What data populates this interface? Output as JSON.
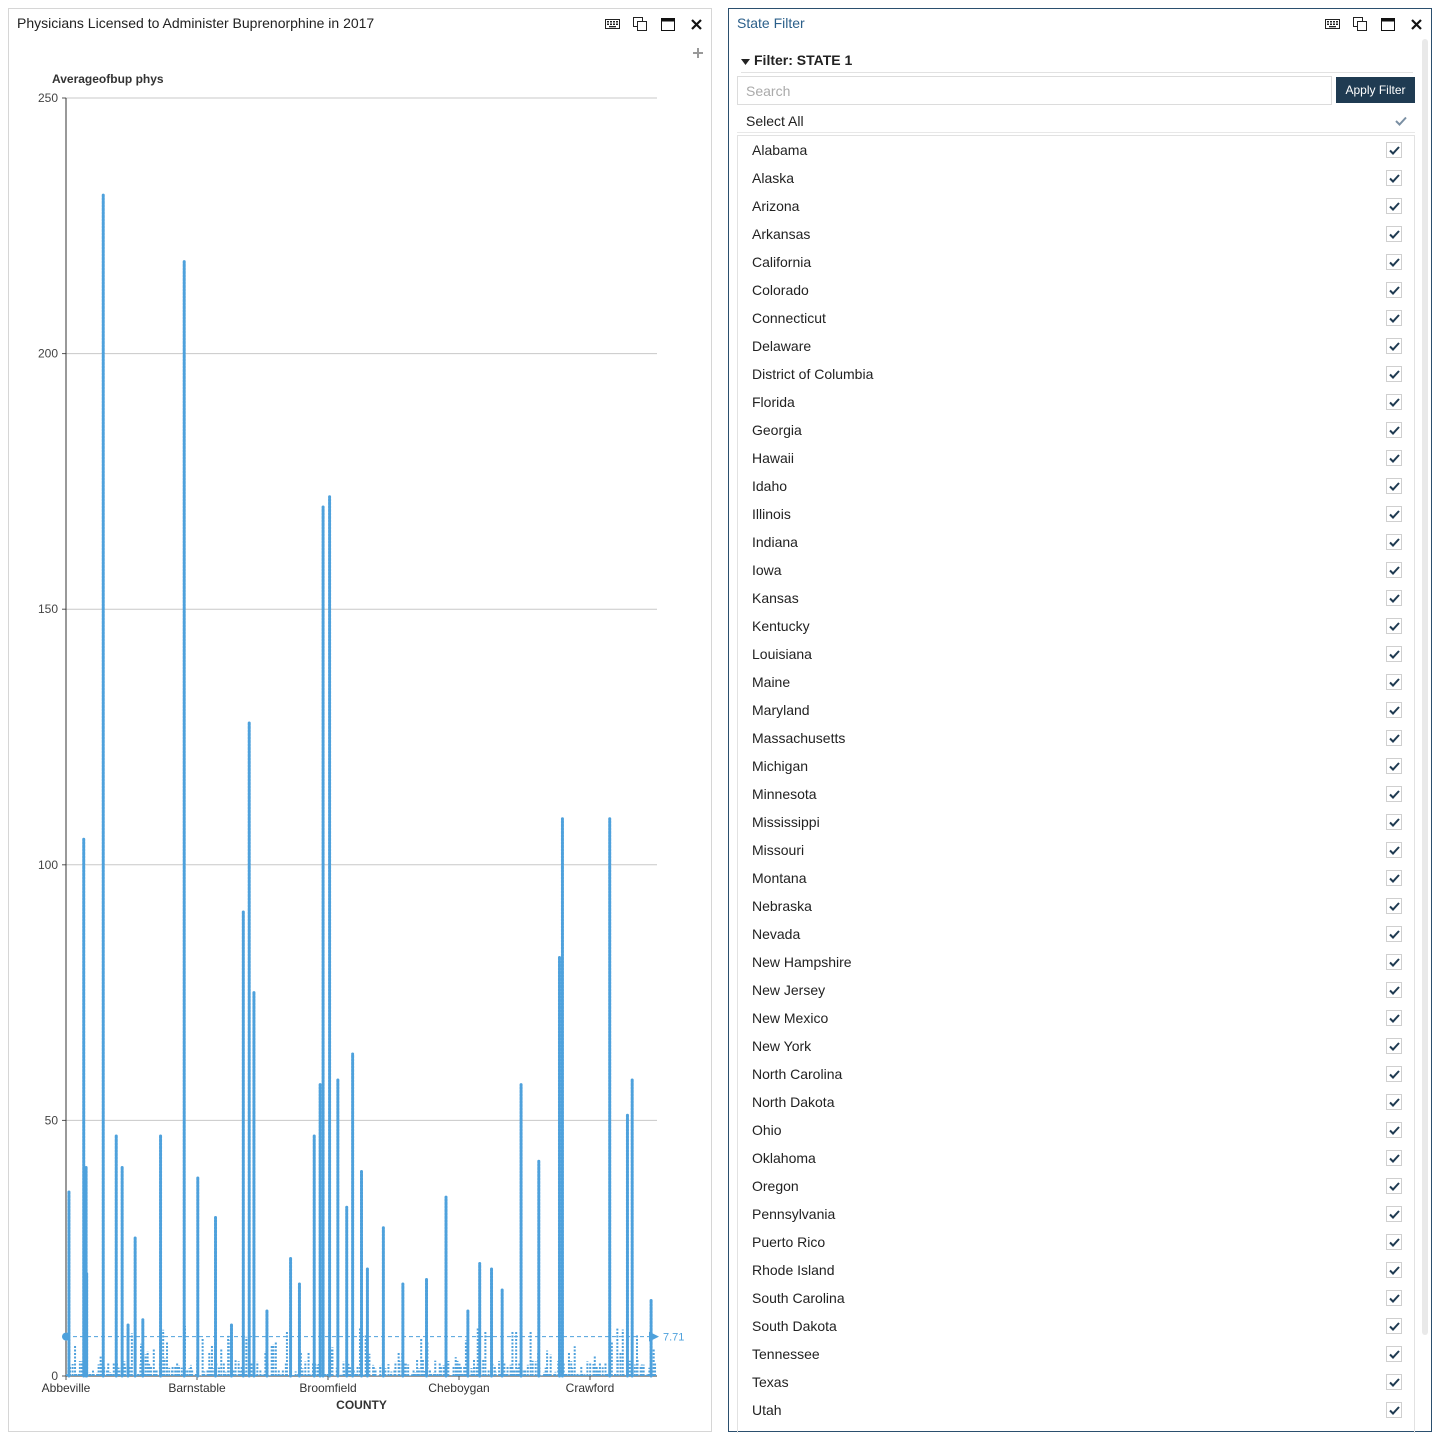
{
  "chart_panel": {
    "title": "Physicians Licensed to Administer Buprenorphine in 2017",
    "controls": [
      "keyboard-icon",
      "duplicate-icon",
      "maximize-icon",
      "close-icon"
    ],
    "add_icon": "plus-icon"
  },
  "chart_data": {
    "type": "line",
    "title": "",
    "ylabel": "Averageofbup phys",
    "xlabel": "COUNTY",
    "ylim": [
      0,
      250
    ],
    "yticks": [
      0,
      50,
      100,
      150,
      200,
      250
    ],
    "x_tick_labels": [
      "Abbeville",
      "Barnstable",
      "Broomfield",
      "Cheboygan",
      "Crawford"
    ],
    "grid": true,
    "color": "#4ea1dc",
    "reference_line": {
      "value": 7.71,
      "label": "7.71"
    },
    "peaks": [
      {
        "x": 0.005,
        "value": 36
      },
      {
        "x": 0.03,
        "value": 105
      },
      {
        "x": 0.034,
        "value": 41
      },
      {
        "x": 0.035,
        "value": 20
      },
      {
        "x": 0.063,
        "value": 231
      },
      {
        "x": 0.085,
        "value": 47
      },
      {
        "x": 0.095,
        "value": 41
      },
      {
        "x": 0.105,
        "value": 10
      },
      {
        "x": 0.117,
        "value": 27
      },
      {
        "x": 0.13,
        "value": 11
      },
      {
        "x": 0.16,
        "value": 47
      },
      {
        "x": 0.2,
        "value": 218
      },
      {
        "x": 0.223,
        "value": 39
      },
      {
        "x": 0.253,
        "value": 31
      },
      {
        "x": 0.28,
        "value": 10
      },
      {
        "x": 0.3,
        "value": 91
      },
      {
        "x": 0.31,
        "value": 128
      },
      {
        "x": 0.318,
        "value": 75
      },
      {
        "x": 0.34,
        "value": 13
      },
      {
        "x": 0.38,
        "value": 23
      },
      {
        "x": 0.395,
        "value": 18
      },
      {
        "x": 0.42,
        "value": 47
      },
      {
        "x": 0.43,
        "value": 57
      },
      {
        "x": 0.435,
        "value": 170
      },
      {
        "x": 0.446,
        "value": 172
      },
      {
        "x": 0.46,
        "value": 58
      },
      {
        "x": 0.475,
        "value": 33
      },
      {
        "x": 0.485,
        "value": 63
      },
      {
        "x": 0.5,
        "value": 40
      },
      {
        "x": 0.51,
        "value": 21
      },
      {
        "x": 0.537,
        "value": 29
      },
      {
        "x": 0.57,
        "value": 18
      },
      {
        "x": 0.61,
        "value": 19
      },
      {
        "x": 0.643,
        "value": 35
      },
      {
        "x": 0.68,
        "value": 13
      },
      {
        "x": 0.7,
        "value": 22
      },
      {
        "x": 0.72,
        "value": 21
      },
      {
        "x": 0.738,
        "value": 17
      },
      {
        "x": 0.77,
        "value": 57
      },
      {
        "x": 0.8,
        "value": 42
      },
      {
        "x": 0.835,
        "value": 82
      },
      {
        "x": 0.84,
        "value": 109
      },
      {
        "x": 0.92,
        "value": 109
      },
      {
        "x": 0.95,
        "value": 51
      },
      {
        "x": 0.958,
        "value": 58
      },
      {
        "x": 0.99,
        "value": 15
      }
    ]
  },
  "filter_panel": {
    "title": "State Filter",
    "controls": [
      "keyboard-icon",
      "duplicate-icon",
      "maximize-icon",
      "close-icon"
    ],
    "header": "Filter: STATE 1",
    "search_placeholder": "Search",
    "apply_label": "Apply Filter",
    "select_all_label": "Select All",
    "select_all_checked": true,
    "states": [
      {
        "label": "Alabama",
        "checked": true
      },
      {
        "label": "Alaska",
        "checked": true
      },
      {
        "label": "Arizona",
        "checked": true
      },
      {
        "label": "Arkansas",
        "checked": true
      },
      {
        "label": "California",
        "checked": true
      },
      {
        "label": "Colorado",
        "checked": true
      },
      {
        "label": "Connecticut",
        "checked": true
      },
      {
        "label": "Delaware",
        "checked": true
      },
      {
        "label": "District of Columbia",
        "checked": true
      },
      {
        "label": "Florida",
        "checked": true
      },
      {
        "label": "Georgia",
        "checked": true
      },
      {
        "label": "Hawaii",
        "checked": true
      },
      {
        "label": "Idaho",
        "checked": true
      },
      {
        "label": "Illinois",
        "checked": true
      },
      {
        "label": "Indiana",
        "checked": true
      },
      {
        "label": "Iowa",
        "checked": true
      },
      {
        "label": "Kansas",
        "checked": true
      },
      {
        "label": "Kentucky",
        "checked": true
      },
      {
        "label": "Louisiana",
        "checked": true
      },
      {
        "label": "Maine",
        "checked": true
      },
      {
        "label": "Maryland",
        "checked": true
      },
      {
        "label": "Massachusetts",
        "checked": true
      },
      {
        "label": "Michigan",
        "checked": true
      },
      {
        "label": "Minnesota",
        "checked": true
      },
      {
        "label": "Mississippi",
        "checked": true
      },
      {
        "label": "Missouri",
        "checked": true
      },
      {
        "label": "Montana",
        "checked": true
      },
      {
        "label": "Nebraska",
        "checked": true
      },
      {
        "label": "Nevada",
        "checked": true
      },
      {
        "label": "New Hampshire",
        "checked": true
      },
      {
        "label": "New Jersey",
        "checked": true
      },
      {
        "label": "New Mexico",
        "checked": true
      },
      {
        "label": "New York",
        "checked": true
      },
      {
        "label": "North Carolina",
        "checked": true
      },
      {
        "label": "North Dakota",
        "checked": true
      },
      {
        "label": "Ohio",
        "checked": true
      },
      {
        "label": "Oklahoma",
        "checked": true
      },
      {
        "label": "Oregon",
        "checked": true
      },
      {
        "label": "Pennsylvania",
        "checked": true
      },
      {
        "label": "Puerto Rico",
        "checked": true
      },
      {
        "label": "Rhode Island",
        "checked": true
      },
      {
        "label": "South Carolina",
        "checked": true
      },
      {
        "label": "South Dakota",
        "checked": true
      },
      {
        "label": "Tennessee",
        "checked": true
      },
      {
        "label": "Texas",
        "checked": true
      },
      {
        "label": "Utah",
        "checked": true
      }
    ]
  }
}
